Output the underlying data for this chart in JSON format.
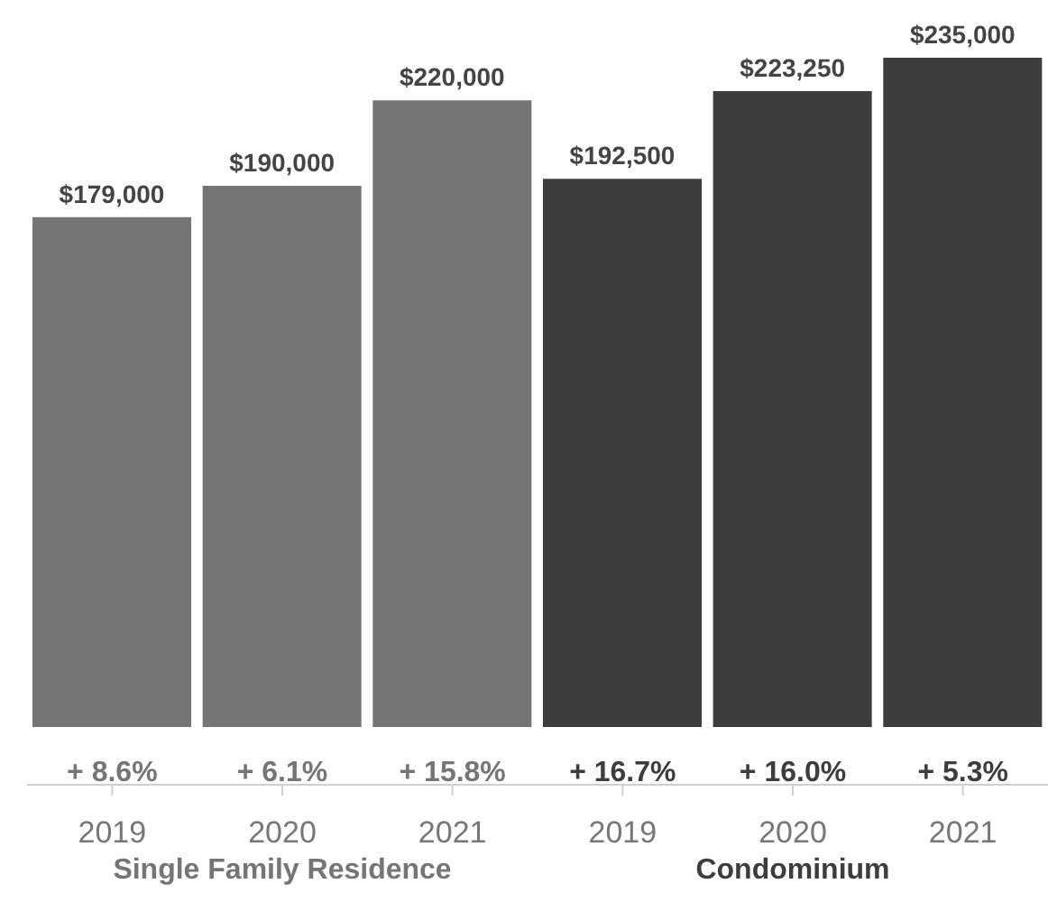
{
  "chart_data": {
    "type": "bar",
    "categories": [
      "2019",
      "2020",
      "2021",
      "2019",
      "2020",
      "2021"
    ],
    "series": [
      {
        "name": "Single Family Residence",
        "color": "#757575",
        "values": [
          179000,
          190000,
          220000,
          null,
          null,
          null
        ],
        "value_labels": [
          "$179,000",
          "$190,000",
          "$220,000",
          null,
          null,
          null
        ]
      },
      {
        "name": "Condominium",
        "color": "#3d3d3d",
        "values": [
          null,
          null,
          null,
          192500,
          223250,
          235000
        ],
        "value_labels": [
          null,
          null,
          null,
          "$192,500",
          "$223,250",
          "$235,000"
        ]
      }
    ],
    "annotations": [
      "+ 8.6%",
      "+ 6.1%",
      "+ 15.8%",
      "+ 16.7%",
      "+ 16.0%",
      "+ 5.3%"
    ],
    "grid": false,
    "legend": false
  }
}
